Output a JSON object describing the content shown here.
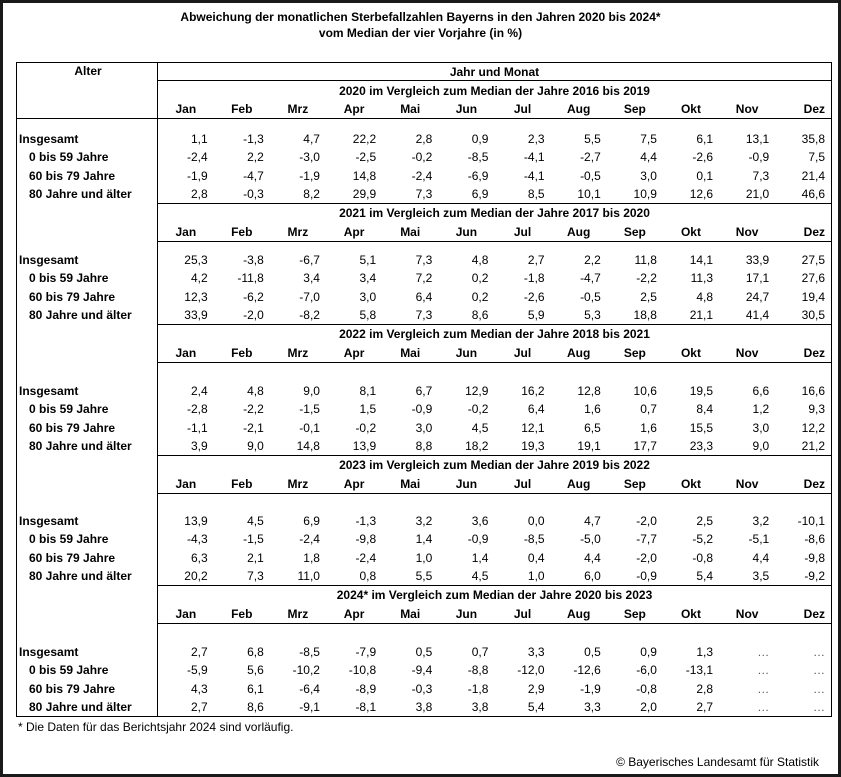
{
  "title_line1": "Abweichung der monatlichen Sterbefallzahlen Bayerns in den Jahren 2020 bis 2024*",
  "title_line2": "vom Median der vier Vorjahre (in %)",
  "header": {
    "age_label": "Alter",
    "group_label": "Jahr und Monat"
  },
  "months": [
    "Jan",
    "Feb",
    "Mrz",
    "Apr",
    "Mai",
    "Jun",
    "Jul",
    "Aug",
    "Sep",
    "Okt",
    "Nov",
    "Dez"
  ],
  "row_labels": [
    "Insgesamt",
    "0 bis 59 Jahre",
    "60 bis 79 Jahre",
    "80 Jahre und älter"
  ],
  "blocks": [
    {
      "title": "2020 im Vergleich zum Median der Jahre 2016 bis 2019",
      "rows": [
        [
          "1,1",
          "-1,3",
          "4,7",
          "22,2",
          "2,8",
          "0,9",
          "2,3",
          "5,5",
          "7,5",
          "6,1",
          "13,1",
          "35,8"
        ],
        [
          "-2,4",
          "2,2",
          "-3,0",
          "-2,5",
          "-0,2",
          "-8,5",
          "-4,1",
          "-2,7",
          "4,4",
          "-2,6",
          "-0,9",
          "7,5"
        ],
        [
          "-1,9",
          "-4,7",
          "-1,9",
          "14,8",
          "-2,4",
          "-6,9",
          "-4,1",
          "-0,5",
          "3,0",
          "0,1",
          "7,3",
          "21,4"
        ],
        [
          "2,8",
          "-0,3",
          "8,2",
          "29,9",
          "7,3",
          "6,9",
          "8,5",
          "10,1",
          "10,9",
          "12,6",
          "21,0",
          "46,6"
        ]
      ]
    },
    {
      "title": "2021 im Vergleich zum Median der Jahre 2017 bis 2020",
      "rows": [
        [
          "25,3",
          "-3,8",
          "-6,7",
          "5,1",
          "7,3",
          "4,8",
          "2,7",
          "2,2",
          "11,8",
          "14,1",
          "33,9",
          "27,5"
        ],
        [
          "4,2",
          "-11,8",
          "3,4",
          "3,4",
          "7,2",
          "0,2",
          "-1,8",
          "-4,7",
          "-2,2",
          "11,3",
          "17,1",
          "27,6"
        ],
        [
          "12,3",
          "-6,2",
          "-7,0",
          "3,0",
          "6,4",
          "0,2",
          "-2,6",
          "-0,5",
          "2,5",
          "4,8",
          "24,7",
          "19,4"
        ],
        [
          "33,9",
          "-2,0",
          "-8,2",
          "5,8",
          "7,3",
          "8,6",
          "5,9",
          "5,3",
          "18,8",
          "21,1",
          "41,4",
          "30,5"
        ]
      ]
    },
    {
      "title": "2022 im Vergleich zum Median der Jahre 2018 bis 2021",
      "rows": [
        [
          "2,4",
          "4,8",
          "9,0",
          "8,1",
          "6,7",
          "12,9",
          "16,2",
          "12,8",
          "10,6",
          "19,5",
          "6,6",
          "16,6"
        ],
        [
          "-2,8",
          "-2,2",
          "-1,5",
          "1,5",
          "-0,9",
          "-0,2",
          "6,4",
          "1,6",
          "0,7",
          "8,4",
          "1,2",
          "9,3"
        ],
        [
          "-1,1",
          "-2,1",
          "-0,1",
          "-0,2",
          "3,0",
          "4,5",
          "12,1",
          "6,5",
          "1,6",
          "15,5",
          "3,0",
          "12,2"
        ],
        [
          "3,9",
          "9,0",
          "14,8",
          "13,9",
          "8,8",
          "18,2",
          "19,3",
          "19,1",
          "17,7",
          "23,3",
          "9,0",
          "21,2"
        ]
      ]
    },
    {
      "title": "2023 im Vergleich zum Median der Jahre 2019 bis 2022",
      "rows": [
        [
          "13,9",
          "4,5",
          "6,9",
          "-1,3",
          "3,2",
          "3,6",
          "0,0",
          "4,7",
          "-2,0",
          "2,5",
          "3,2",
          "-10,1"
        ],
        [
          "-4,3",
          "-1,5",
          "-2,4",
          "-9,8",
          "1,4",
          "-0,9",
          "-8,5",
          "-5,0",
          "-7,7",
          "-5,2",
          "-5,1",
          "-8,6"
        ],
        [
          "6,3",
          "2,1",
          "1,8",
          "-2,4",
          "1,0",
          "1,4",
          "0,4",
          "4,4",
          "-2,0",
          "-0,8",
          "4,4",
          "-9,8"
        ],
        [
          "20,2",
          "7,3",
          "11,0",
          "0,8",
          "5,5",
          "4,5",
          "1,0",
          "6,0",
          "-0,9",
          "5,4",
          "3,5",
          "-9,2"
        ]
      ]
    },
    {
      "title": "2024* im Vergleich zum Median der Jahre 2020 bis 2023",
      "rows": [
        [
          "2,7",
          "6,8",
          "-8,5",
          "-7,9",
          "0,5",
          "0,7",
          "3,3",
          "0,5",
          "0,9",
          "1,3",
          "…",
          "…"
        ],
        [
          "-5,9",
          "5,6",
          "-10,2",
          "-10,8",
          "-9,4",
          "-8,8",
          "-12,0",
          "-12,6",
          "-6,0",
          "-13,1",
          "…",
          "…"
        ],
        [
          "4,3",
          "6,1",
          "-6,4",
          "-8,9",
          "-0,3",
          "-1,8",
          "2,9",
          "-1,9",
          "-0,8",
          "2,8",
          "…",
          "…"
        ],
        [
          "2,7",
          "8,6",
          "-9,1",
          "-8,1",
          "3,8",
          "3,8",
          "5,4",
          "3,3",
          "2,0",
          "2,7",
          "…",
          "…"
        ]
      ]
    }
  ],
  "footnote": "* Die Daten für das Berichtsjahr 2024 sind vorläufig.",
  "copyright": "© Bayerisches Landesamt für Statistik"
}
